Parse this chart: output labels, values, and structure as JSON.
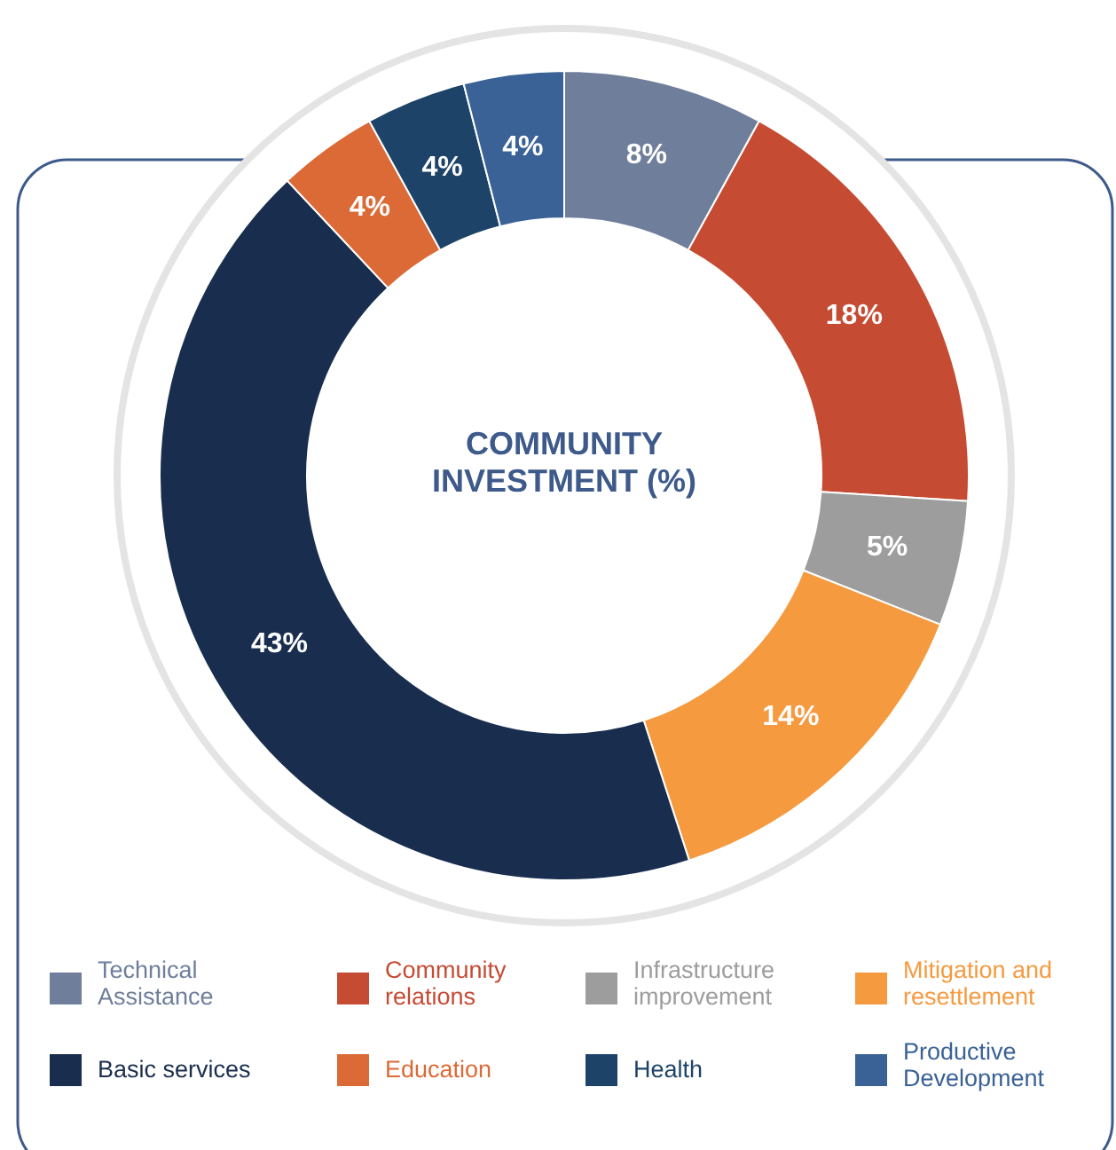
{
  "chart_data": {
    "type": "donut",
    "title": "COMMUNITY INVESTMENT (%)",
    "categories": [
      "Technical Assistance",
      "Community relations",
      "Infrastructure improvement",
      "Mitigation and resettlement",
      "Basic services",
      "Education",
      "Health",
      "Productive Development"
    ],
    "values": [
      8,
      18,
      5,
      14,
      43,
      4,
      4,
      4
    ],
    "value_labels": [
      "8%",
      "18%",
      "5%",
      "14%",
      "43%",
      "4%",
      "4%",
      "4%"
    ],
    "colors": [
      "#6f7f9b",
      "#c64b33",
      "#9d9d9d",
      "#f59a3f",
      "#192e4f",
      "#db6a36",
      "#1d4468",
      "#3a6296"
    ],
    "legend": "bottom"
  }
}
